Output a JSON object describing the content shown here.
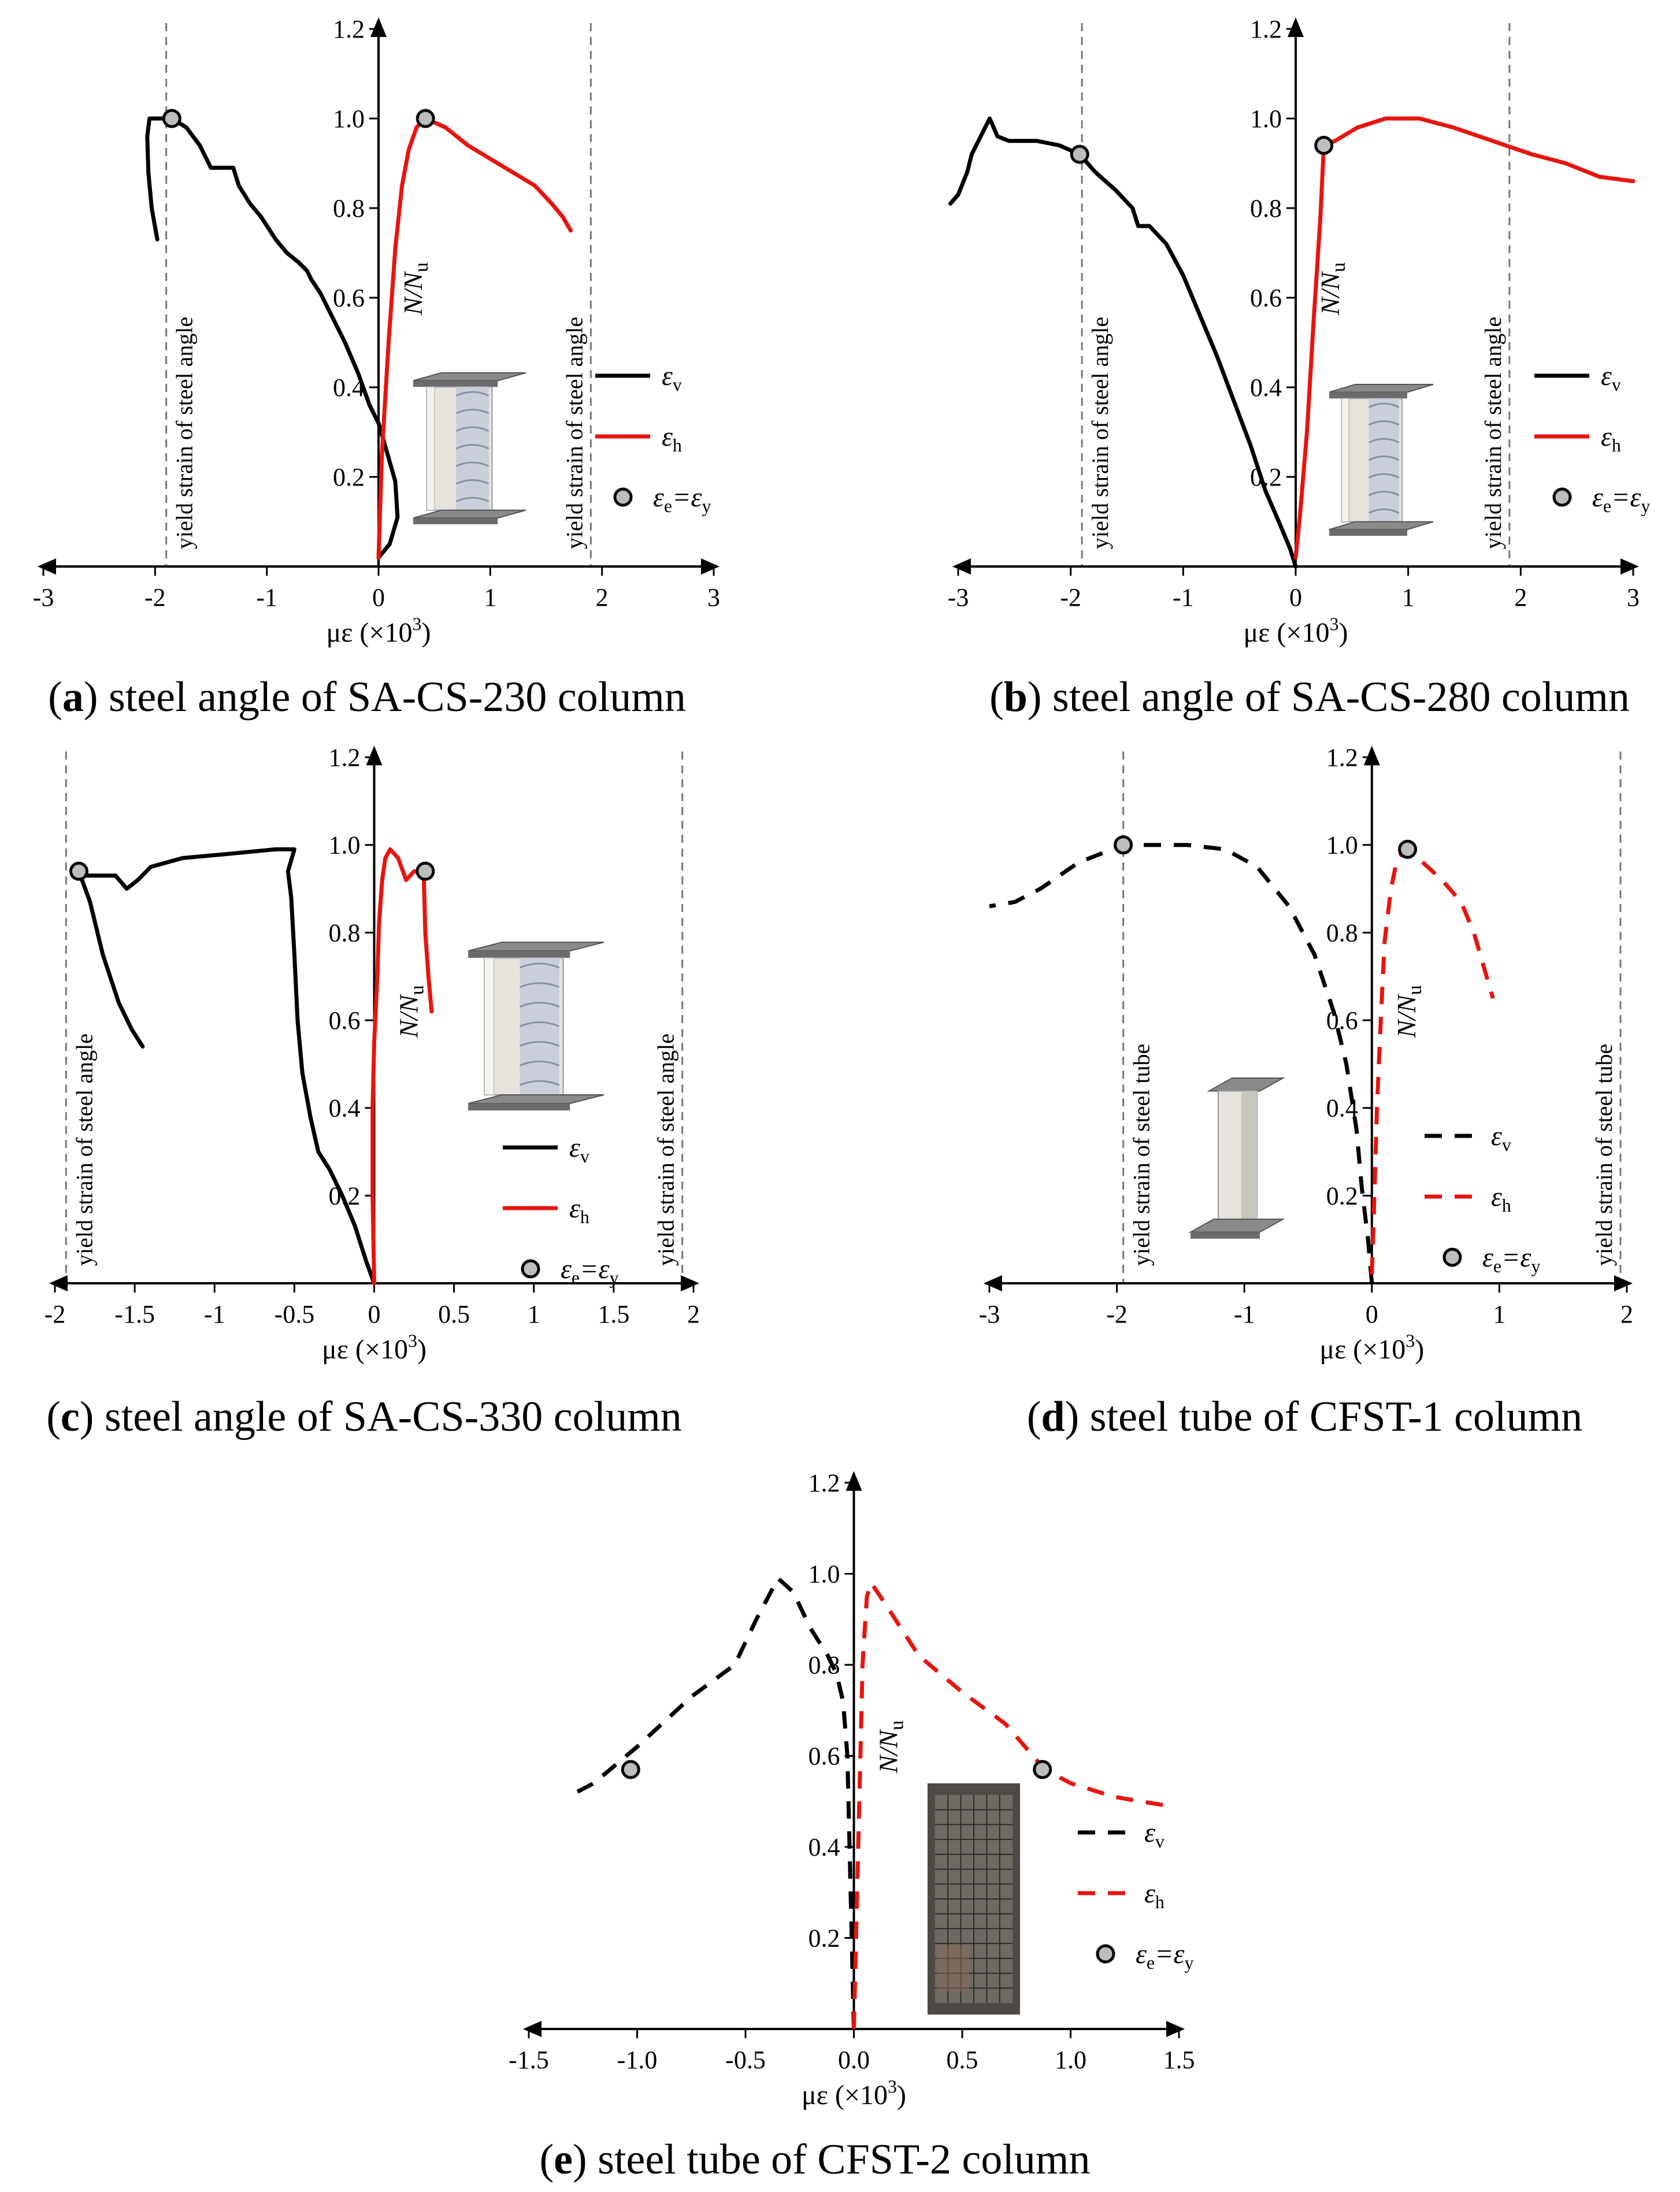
{
  "figure": {
    "y_axis_label": "N/N",
    "y_axis_label_sub": "u",
    "x_axis_label": "με (×10",
    "x_axis_label_sup": "3",
    "x_axis_label_close": ")",
    "legend_v": "ε",
    "legend_v_sub": "v",
    "legend_h": "ε",
    "legend_h_sub": "h",
    "legend_marker": "ε",
    "legend_marker_sub1": "e",
    "legend_marker_mid": "=ε",
    "legend_marker_sub2": "y",
    "colors": {
      "black": "#000000",
      "red": "#e8140e",
      "marker_fill": "#bdbdbd",
      "guide": "#777777"
    }
  },
  "chart_data": [
    {
      "id": "a",
      "type": "line",
      "caption_letter": "a",
      "caption_text": "steel angle of SA-CS-230 column",
      "xlim": [
        -3,
        3
      ],
      "ylim": [
        0,
        1.2
      ],
      "x_ticks": [
        "-3",
        "-2",
        "-1",
        "0",
        "1",
        "2",
        "3"
      ],
      "y_ticks": [
        "0.2",
        "0.4",
        "0.6",
        "0.8",
        "1.0",
        "1.2"
      ],
      "yield_text": "yield strain of steel angle",
      "yield_lines": [
        -1.9,
        1.9
      ],
      "dashed": false,
      "series": [
        {
          "name": "εv",
          "color": "black",
          "points": [
            [
              0,
              0.02
            ],
            [
              0.1,
              0.05
            ],
            [
              0.17,
              0.11
            ],
            [
              0.15,
              0.19
            ],
            [
              0.07,
              0.26
            ],
            [
              0,
              0.32
            ],
            [
              -0.08,
              0.36
            ],
            [
              -0.18,
              0.43
            ],
            [
              -0.3,
              0.5
            ],
            [
              -0.4,
              0.55
            ],
            [
              -0.52,
              0.61
            ],
            [
              -0.6,
              0.64
            ],
            [
              -0.64,
              0.66
            ],
            [
              -0.72,
              0.68
            ],
            [
              -0.82,
              0.7
            ],
            [
              -0.92,
              0.73
            ],
            [
              -1.05,
              0.78
            ],
            [
              -1.15,
              0.81
            ],
            [
              -1.25,
              0.85
            ],
            [
              -1.3,
              0.89
            ],
            [
              -1.5,
              0.89
            ],
            [
              -1.6,
              0.94
            ],
            [
              -1.72,
              0.98
            ],
            [
              -1.85,
              1.0
            ],
            [
              -1.97,
              1.0
            ],
            [
              -2.05,
              1.0
            ],
            [
              -2.07,
              0.96
            ],
            [
              -2.06,
              0.88
            ],
            [
              -2.03,
              0.8
            ],
            [
              -1.98,
              0.73
            ]
          ]
        },
        {
          "name": "εh",
          "color": "red",
          "points": [
            [
              0,
              0.02
            ],
            [
              0.03,
              0.25
            ],
            [
              0.09,
              0.5
            ],
            [
              0.15,
              0.71
            ],
            [
              0.21,
              0.85
            ],
            [
              0.27,
              0.93
            ],
            [
              0.34,
              0.98
            ],
            [
              0.42,
              1.0
            ],
            [
              0.6,
              0.98
            ],
            [
              0.8,
              0.94
            ],
            [
              1.0,
              0.91
            ],
            [
              1.2,
              0.88
            ],
            [
              1.4,
              0.85
            ],
            [
              1.55,
              0.81
            ],
            [
              1.65,
              0.78
            ],
            [
              1.72,
              0.75
            ]
          ]
        }
      ],
      "markers": [
        [
          -1.85,
          1.0
        ],
        [
          0.42,
          1.0
        ]
      ],
      "inset": "angle-column"
    },
    {
      "id": "b",
      "type": "line",
      "caption_letter": "b",
      "caption_text": "steel angle of SA-CS-280 column",
      "xlim": [
        -3,
        3
      ],
      "ylim": [
        0,
        1.2
      ],
      "x_ticks": [
        "-3",
        "-2",
        "-1",
        "0",
        "1",
        "2",
        "3"
      ],
      "y_ticks": [
        "0.2",
        "0.4",
        "0.6",
        "0.8",
        "1.0",
        "1.2"
      ],
      "yield_text": "yield strain of steel angle",
      "yield_lines": [
        -1.9,
        1.9
      ],
      "dashed": false,
      "series": [
        {
          "name": "εv",
          "color": "black",
          "points": [
            [
              0,
              0
            ],
            [
              -0.05,
              0.04
            ],
            [
              -0.15,
              0.1
            ],
            [
              -0.27,
              0.17
            ],
            [
              -0.4,
              0.27
            ],
            [
              -0.55,
              0.37
            ],
            [
              -0.7,
              0.47
            ],
            [
              -0.85,
              0.56
            ],
            [
              -1.0,
              0.65
            ],
            [
              -1.15,
              0.72
            ],
            [
              -1.3,
              0.76
            ],
            [
              -1.4,
              0.76
            ],
            [
              -1.45,
              0.8
            ],
            [
              -1.6,
              0.84
            ],
            [
              -1.78,
              0.88
            ],
            [
              -1.92,
              0.92
            ],
            [
              -2.1,
              0.94
            ],
            [
              -2.3,
              0.95
            ],
            [
              -2.55,
              0.95
            ],
            [
              -2.65,
              0.96
            ],
            [
              -2.72,
              1.0
            ],
            [
              -2.78,
              0.97
            ],
            [
              -2.88,
              0.92
            ],
            [
              -2.92,
              0.88
            ],
            [
              -3.0,
              0.83
            ],
            [
              -3.07,
              0.81
            ]
          ]
        },
        {
          "name": "εh",
          "color": "red",
          "points": [
            [
              0,
              0.02
            ],
            [
              0.04,
              0.12
            ],
            [
              0.1,
              0.3
            ],
            [
              0.16,
              0.55
            ],
            [
              0.22,
              0.78
            ],
            [
              0.25,
              0.94
            ],
            [
              0.35,
              0.95
            ],
            [
              0.55,
              0.98
            ],
            [
              0.8,
              1.0
            ],
            [
              1.1,
              1.0
            ],
            [
              1.4,
              0.98
            ],
            [
              1.75,
              0.95
            ],
            [
              2.1,
              0.92
            ],
            [
              2.4,
              0.9
            ],
            [
              2.7,
              0.87
            ],
            [
              3.0,
              0.86
            ]
          ]
        }
      ],
      "markers": [
        [
          -1.92,
          0.92
        ],
        [
          0.25,
          0.94
        ]
      ],
      "inset": "angle-column"
    },
    {
      "id": "c",
      "type": "line",
      "caption_letter": "c",
      "caption_text": "steel angle of SA-CS-330 column",
      "xlim": [
        -2,
        2
      ],
      "ylim": [
        0,
        1.2
      ],
      "x_ticks": [
        "-2",
        "-1.5",
        "-1",
        "-0.5",
        "0",
        "0.5",
        "1",
        "1.5",
        "2"
      ],
      "y_ticks": [
        "0.2",
        "0.4",
        "0.6",
        "0.8",
        "1.0",
        "1.2"
      ],
      "yield_text": "yield strain of steel angle",
      "yield_lines": [
        -1.93,
        1.93
      ],
      "dashed": false,
      "series": [
        {
          "name": "εv",
          "color": "black",
          "points": [
            [
              0,
              0
            ],
            [
              -0.05,
              0.05
            ],
            [
              -0.12,
              0.13
            ],
            [
              -0.2,
              0.2
            ],
            [
              -0.28,
              0.26
            ],
            [
              -0.35,
              0.3
            ],
            [
              -0.4,
              0.38
            ],
            [
              -0.45,
              0.48
            ],
            [
              -0.48,
              0.6
            ],
            [
              -0.5,
              0.75
            ],
            [
              -0.52,
              0.88
            ],
            [
              -0.54,
              0.94
            ],
            [
              -0.5,
              0.99
            ],
            [
              -0.62,
              0.99
            ],
            [
              -0.9,
              0.98
            ],
            [
              -1.2,
              0.97
            ],
            [
              -1.4,
              0.95
            ],
            [
              -1.48,
              0.92
            ],
            [
              -1.55,
              0.9
            ],
            [
              -1.62,
              0.93
            ],
            [
              -1.8,
              0.93
            ],
            [
              -1.85,
              0.94
            ],
            [
              -1.78,
              0.87
            ],
            [
              -1.7,
              0.75
            ],
            [
              -1.6,
              0.64
            ],
            [
              -1.52,
              0.58
            ],
            [
              -1.45,
              0.54
            ]
          ]
        },
        {
          "name": "εh",
          "color": "red",
          "points": [
            [
              0,
              0
            ],
            [
              -0.01,
              0.2
            ],
            [
              -0.01,
              0.4
            ],
            [
              0.0,
              0.55
            ],
            [
              0.02,
              0.7
            ],
            [
              0.03,
              0.82
            ],
            [
              0.05,
              0.92
            ],
            [
              0.07,
              0.97
            ],
            [
              0.1,
              0.99
            ],
            [
              0.15,
              0.97
            ],
            [
              0.2,
              0.92
            ],
            [
              0.25,
              0.94
            ],
            [
              0.31,
              0.94
            ],
            [
              0.32,
              0.8
            ],
            [
              0.34,
              0.7
            ],
            [
              0.36,
              0.62
            ]
          ]
        }
      ],
      "markers": [
        [
          -1.85,
          0.94
        ],
        [
          0.32,
          0.94
        ]
      ],
      "inset": "angle-column"
    },
    {
      "id": "d",
      "type": "line",
      "caption_letter": "d",
      "caption_text": "steel tube of CFST-1 column",
      "xlim": [
        -3,
        2
      ],
      "ylim": [
        0,
        1.2
      ],
      "x_ticks": [
        "-3",
        "-2",
        "-1",
        "0",
        "1",
        "2"
      ],
      "y_ticks": [
        "0.2",
        "0.4",
        "0.6",
        "0.8",
        "1.0",
        "1.2"
      ],
      "yield_text": "yield strain of steel tube",
      "yield_lines": [
        -1.95,
        1.95
      ],
      "dashed": true,
      "series": [
        {
          "name": "εv",
          "color": "black",
          "points": [
            [
              0,
              0
            ],
            [
              -0.03,
              0.1
            ],
            [
              -0.08,
              0.22
            ],
            [
              -0.12,
              0.35
            ],
            [
              -0.2,
              0.5
            ],
            [
              -0.3,
              0.62
            ],
            [
              -0.45,
              0.75
            ],
            [
              -0.65,
              0.86
            ],
            [
              -0.9,
              0.95
            ],
            [
              -1.15,
              0.99
            ],
            [
              -1.45,
              1.0
            ],
            [
              -1.95,
              1.0
            ],
            [
              -2.3,
              0.96
            ],
            [
              -2.6,
              0.9
            ],
            [
              -2.8,
              0.87
            ],
            [
              -3.0,
              0.86
            ]
          ]
        },
        {
          "name": "εh",
          "color": "red",
          "points": [
            [
              0,
              0.02
            ],
            [
              0.02,
              0.2
            ],
            [
              0.04,
              0.4
            ],
            [
              0.07,
              0.6
            ],
            [
              0.1,
              0.78
            ],
            [
              0.15,
              0.9
            ],
            [
              0.2,
              0.97
            ],
            [
              0.28,
              0.99
            ],
            [
              0.4,
              0.96
            ],
            [
              0.55,
              0.92
            ],
            [
              0.7,
              0.87
            ],
            [
              0.8,
              0.8
            ],
            [
              0.9,
              0.7
            ],
            [
              0.95,
              0.65
            ]
          ]
        }
      ],
      "markers": [
        [
          -1.95,
          1.0
        ],
        [
          0.28,
          0.99
        ]
      ],
      "inset": "tube-column"
    },
    {
      "id": "e",
      "type": "line",
      "caption_letter": "e",
      "caption_text": "steel tube of CFST-2 column",
      "xlim": [
        -1.5,
        1.5
      ],
      "ylim": [
        0,
        1.2
      ],
      "x_ticks": [
        "-1.5",
        "-1.0",
        "-0.5",
        "0.0",
        "0.5",
        "1.0",
        "1.5"
      ],
      "y_ticks": [
        "0.2",
        "0.4",
        "0.6",
        "0.8",
        "1.0",
        "1.2"
      ],
      "yield_text": "",
      "yield_lines": [],
      "dashed": true,
      "series": [
        {
          "name": "εv",
          "color": "black",
          "points": [
            [
              0,
              0
            ],
            [
              -0.01,
              0.2
            ],
            [
              -0.02,
              0.4
            ],
            [
              -0.03,
              0.6
            ],
            [
              -0.05,
              0.72
            ],
            [
              -0.08,
              0.78
            ],
            [
              -0.12,
              0.82
            ],
            [
              -0.2,
              0.88
            ],
            [
              -0.28,
              0.96
            ],
            [
              -0.35,
              0.99
            ],
            [
              -0.45,
              0.9
            ],
            [
              -0.55,
              0.8
            ],
            [
              -0.75,
              0.73
            ],
            [
              -1.0,
              0.62
            ],
            [
              -1.2,
              0.54
            ],
            [
              -1.28,
              0.52
            ]
          ]
        },
        {
          "name": "εh",
          "color": "red",
          "points": [
            [
              0,
              0
            ],
            [
              0.01,
              0.2
            ],
            [
              0.02,
              0.4
            ],
            [
              0.03,
              0.6
            ],
            [
              0.04,
              0.8
            ],
            [
              0.06,
              0.95
            ],
            [
              0.08,
              0.98
            ],
            [
              0.15,
              0.93
            ],
            [
              0.3,
              0.82
            ],
            [
              0.5,
              0.74
            ],
            [
              0.7,
              0.67
            ],
            [
              0.88,
              0.57
            ],
            [
              1.0,
              0.54
            ],
            [
              1.2,
              0.51
            ],
            [
              1.45,
              0.49
            ]
          ]
        }
      ],
      "markers": [
        [
          -1.03,
          0.57
        ],
        [
          0.87,
          0.57
        ]
      ],
      "inset": "photo-column"
    }
  ]
}
